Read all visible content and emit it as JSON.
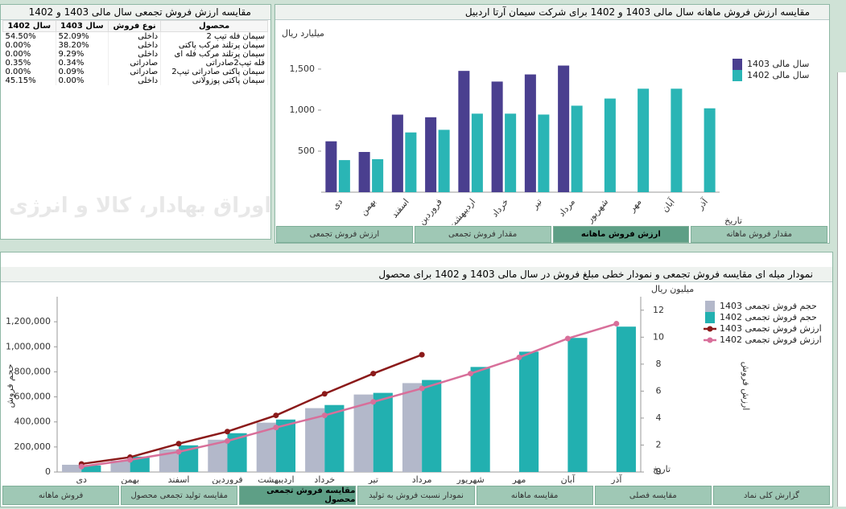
{
  "table_panel": {
    "title": "مقایسه ارزش فروش تجمعی سال مالی 1403 و 1402",
    "columns": [
      "سال 1402",
      "سال 1403",
      "نوع فروش",
      "محصول"
    ],
    "rows": [
      [
        "54.50%",
        "52.09%",
        "داخلی",
        "سیمان فله تیپ 2"
      ],
      [
        "0.00%",
        "38.20%",
        "داخلی",
        "سیمان پرتلند مرکب پاکتی"
      ],
      [
        "0.00%",
        "9.29%",
        "داخلی",
        "سیمان پرتلند مرکب فله ای"
      ],
      [
        "0.35%",
        "0.34%",
        "صادراتی",
        "فله تیپ2صادراتی"
      ],
      [
        "0.00%",
        "0.09%",
        "صادراتی",
        "سیمان پاکتی صادراتی تیپ2"
      ],
      [
        "45.15%",
        "0.00%",
        "داخلی",
        "سیمان پاکتی پوزولانی"
      ]
    ]
  },
  "watermark": "کارگزار بورس اوراق بهادار، کالا و انرژی",
  "top_tabs": [
    "ارزش فروش تجمعی",
    "مقدار فروش تجمعی",
    "ارزش فروش ماهانه",
    "مقدار فروش ماهانه"
  ],
  "bottom_tabs": [
    "فروش ماهانه",
    "مقایسه تولید تجمعی محصول",
    "مقایسه فروش تجمعی محصول",
    "نمودار نسبت فروش به تولید",
    "مقایسه ماهانه",
    "مقایسه فصلی",
    "گزارش کلی نماد"
  ],
  "chart_data": [
    {
      "type": "bar",
      "title": "مقایسه ارزش فروش ماهانه سال مالی 1403 و 1402 برای شرکت سیمان آرتا اردبیل",
      "y_unit": "میلیارد ریال",
      "x_label": "تاریخ",
      "categories": [
        "دی",
        "بهمن",
        "اسفند",
        "فروردین",
        "اردیبهشت",
        "خرداد",
        "تیر",
        "مرداد",
        "شهریور",
        "مهر",
        "آبان",
        "آذر"
      ],
      "ylim": [
        0,
        1950
      ],
      "yticks": [
        500,
        {
          "value": 1000,
          "label": "1,000"
        },
        {
          "value": 1500,
          "label": "1,500"
        }
      ],
      "series": [
        {
          "name": "سال مالی 1403",
          "color": "#4a3f8f",
          "values": [
            620,
            490,
            945,
            913,
            1478,
            1348,
            1435,
            1543,
            null,
            null,
            null,
            null
          ]
        },
        {
          "name": "سال مالی 1402",
          "color": "#2ab5b5",
          "values": [
            391,
            402,
            728,
            760,
            957,
            957,
            946,
            1054,
            1141,
            1261,
            1261,
            1022
          ]
        }
      ]
    },
    {
      "type": "combo",
      "title": "نمودار میله ای مقایسه فروش تجمعی و نمودار خطی مبلغ فروش در سال مالی 1403 و 1402 برای محصول",
      "y_label": "حجم فروش",
      "y2_label": "ارزش فروش",
      "y2_unit": "میلیون ریال",
      "x_label": "تاریخ",
      "categories": [
        "دی",
        "بهمن",
        "اسفند",
        "فروردین",
        "اردیبهشت",
        "خرداد",
        "تیر",
        "مرداد",
        "شهریور",
        "مهر",
        "آبان",
        "آذر"
      ],
      "ylim": [
        0,
        1400000
      ],
      "yticks": [
        0,
        {
          "value": 200000,
          "label": "200,000"
        },
        {
          "value": 400000,
          "label": "400,000"
        },
        {
          "value": 600000,
          "label": "600,000"
        },
        {
          "value": 800000,
          "label": "800,000"
        },
        {
          "value": 1000000,
          "label": "1,000,000"
        },
        {
          "value": 1200000,
          "label": "1,200,000"
        }
      ],
      "y2lim": [
        0,
        13
      ],
      "y2ticks": [
        0,
        2,
        4,
        6,
        8,
        10,
        12
      ],
      "series": [
        {
          "name": "حجم فروش تجمعی 1403",
          "mark": "bar",
          "color": "#b3b8ca",
          "values": [
            58000,
            90000,
            181000,
            258000,
            394000,
            510000,
            619000,
            710000,
            null,
            null,
            null,
            null
          ]
        },
        {
          "name": "حجم فروش تجمعی 1402",
          "mark": "bar",
          "color": "#22b0b0",
          "values": [
            52000,
            123000,
            213000,
            310000,
            419000,
            535000,
            632000,
            735000,
            839000,
            961000,
            1071000,
            1161000
          ]
        },
        {
          "name": "ارزش فروش تجمعی 1403",
          "mark": "line",
          "axis": "y2",
          "color": "#8b1a1a",
          "values": [
            0.6,
            1.1,
            2.1,
            3.0,
            4.2,
            5.8,
            7.3,
            8.7,
            null,
            null,
            null,
            null
          ]
        },
        {
          "name": "ارزش فروش تجمعی 1402",
          "mark": "line",
          "axis": "y2",
          "color": "#d86f9a",
          "values": [
            0.4,
            0.9,
            1.5,
            2.3,
            3.3,
            4.2,
            5.2,
            6.2,
            7.3,
            8.5,
            9.9,
            11.0
          ]
        }
      ]
    }
  ]
}
